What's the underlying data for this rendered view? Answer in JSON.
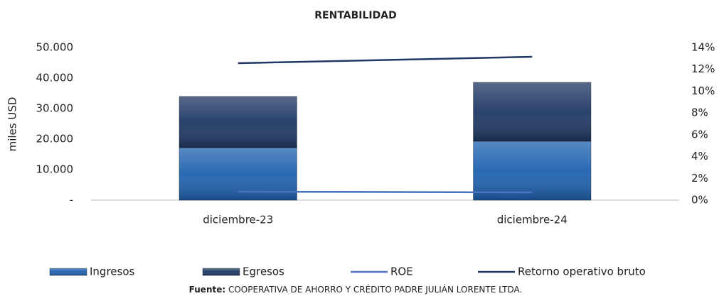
{
  "chart_data": {
    "type": "bar",
    "title": "RENTABILIDAD",
    "ylabel": "miles USD",
    "categories": [
      "diciembre-23",
      "diciembre-24"
    ],
    "series": [
      {
        "name": "Ingresos",
        "type": "bar",
        "color": "#1f62b0",
        "values": [
          17200,
          19300
        ]
      },
      {
        "name": "Egresos",
        "type": "bar",
        "color": "#1f3864",
        "values": [
          16800,
          19300
        ]
      },
      {
        "name": "ROE",
        "type": "line",
        "axis": "y2",
        "color": "#4a70c0",
        "values": [
          0.78,
          0.72
        ]
      },
      {
        "name": "Retorno operativo bruto",
        "type": "line",
        "axis": "y2",
        "color": "#1f3864",
        "values": [
          12.57,
          13.15
        ]
      }
    ],
    "stacked": true,
    "ylim": [
      0,
      50000
    ],
    "yticks": [
      {
        "value": 0,
        "label": "-"
      },
      {
        "value": 10000,
        "label": "10.000"
      },
      {
        "value": 20000,
        "label": "20.000"
      },
      {
        "value": 30000,
        "label": "30.000"
      },
      {
        "value": 40000,
        "label": "40.000"
      },
      {
        "value": 50000,
        "label": "50.000"
      }
    ],
    "y2lim": [
      0,
      14
    ],
    "y2ticks": [
      {
        "value": 0,
        "label": "0%"
      },
      {
        "value": 2,
        "label": "2%"
      },
      {
        "value": 4,
        "label": "4%"
      },
      {
        "value": 6,
        "label": "6%"
      },
      {
        "value": 8,
        "label": "8%"
      },
      {
        "value": 10,
        "label": "10%"
      },
      {
        "value": 12,
        "label": "12%"
      },
      {
        "value": 14,
        "label": "14%"
      }
    ],
    "legend": "bottom",
    "source_label": "Fuente:",
    "source_text": "COOPERATIVA DE AHORRO Y CRÉDITO PADRE JULIÁN LORENTE LTDA."
  }
}
